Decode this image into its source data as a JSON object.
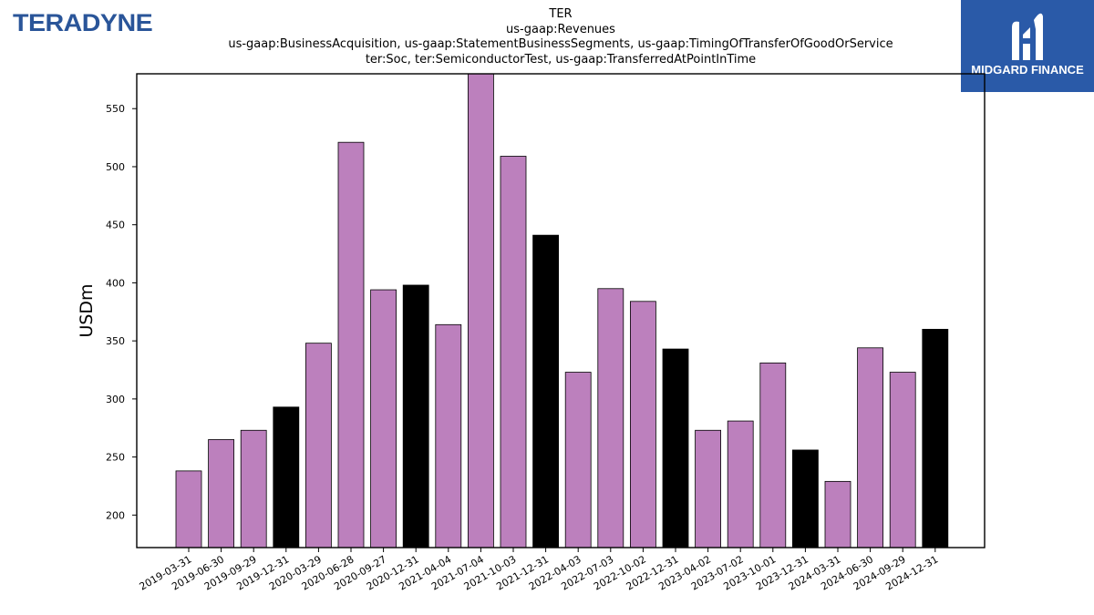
{
  "logos": {
    "left_text": "TERADYNE",
    "right_text": "MIDGARD FINANCE",
    "right_bg": "#2a5aa8",
    "left_color": "#2a5599"
  },
  "chart_data": {
    "type": "bar",
    "title_lines": [
      "TER",
      "us-gaap:Revenues",
      "us-gaap:BusinessAcquisition, us-gaap:StatementBusinessSegments, us-gaap:TimingOfTransferOfGoodOrService",
      "ter:Soc, ter:SemiconductorTest, us-gaap:TransferredAtPointInTime"
    ],
    "ylabel": "USDm",
    "xlabel": "",
    "ylim": [
      172,
      580
    ],
    "yticks": [
      200,
      250,
      300,
      350,
      400,
      450,
      500,
      550
    ],
    "categories": [
      "2019-03-31",
      "2019-06-30",
      "2019-09-29",
      "2019-12-31",
      "2020-03-29",
      "2020-06-28",
      "2020-09-27",
      "2020-12-31",
      "2021-04-04",
      "2021-07-04",
      "2021-10-03",
      "2021-12-31",
      "2022-04-03",
      "2022-07-03",
      "2022-10-02",
      "2022-12-31",
      "2023-04-02",
      "2023-07-02",
      "2023-10-01",
      "2023-12-31",
      "2024-03-31",
      "2024-06-30",
      "2024-09-29",
      "2024-12-31"
    ],
    "values": [
      238,
      265,
      273,
      293,
      348,
      521,
      394,
      398,
      364,
      580,
      509,
      441,
      323,
      395,
      384,
      343,
      273,
      281,
      331,
      256,
      229,
      344,
      323,
      360
    ],
    "quarter_color": "#bc80bd",
    "year_end_color": "#000000",
    "grid": false,
    "legend": "none"
  }
}
